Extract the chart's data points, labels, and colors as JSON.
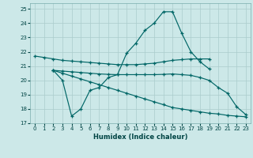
{
  "xlabel": "Humidex (Indice chaleur)",
  "background_color": "#cce8e8",
  "grid_color": "#aacccc",
  "line_color": "#006666",
  "xlim": [
    -0.5,
    23.5
  ],
  "ylim": [
    17,
    25.4
  ],
  "yticks": [
    17,
    18,
    19,
    20,
    21,
    22,
    23,
    24,
    25
  ],
  "xticks": [
    0,
    1,
    2,
    3,
    4,
    5,
    6,
    7,
    8,
    9,
    10,
    11,
    12,
    13,
    14,
    15,
    16,
    17,
    18,
    19,
    20,
    21,
    22,
    23
  ],
  "line1_x": [
    0,
    1,
    2,
    3,
    4,
    5,
    6,
    7,
    8,
    9,
    10,
    11,
    12,
    13,
    14,
    15,
    16,
    17,
    18,
    19
  ],
  "line1_y": [
    21.7,
    21.6,
    21.5,
    21.4,
    21.35,
    21.3,
    21.25,
    21.2,
    21.15,
    21.1,
    21.1,
    21.1,
    21.15,
    21.2,
    21.3,
    21.4,
    21.45,
    21.5,
    21.5,
    21.5
  ],
  "line2_x": [
    2,
    3,
    4,
    5,
    6,
    7,
    8,
    9,
    10,
    11,
    12,
    13,
    14,
    15,
    16,
    17,
    18,
    19
  ],
  "line2_y": [
    20.7,
    20.0,
    17.5,
    18.0,
    19.3,
    19.5,
    20.2,
    20.4,
    21.9,
    22.6,
    23.5,
    24.0,
    24.8,
    24.8,
    23.3,
    22.0,
    21.3,
    20.8
  ],
  "line3_x": [
    2,
    3,
    4,
    5,
    6,
    7,
    8,
    9,
    10,
    11,
    12,
    13,
    14,
    15,
    16,
    17,
    18,
    19,
    20,
    21,
    22,
    23
  ],
  "line3_y": [
    20.7,
    20.5,
    20.3,
    20.1,
    19.9,
    19.7,
    19.5,
    19.3,
    19.1,
    18.9,
    18.7,
    18.5,
    18.3,
    18.1,
    18.0,
    17.9,
    17.8,
    17.7,
    17.65,
    17.55,
    17.5,
    17.45
  ],
  "line4_x": [
    2,
    3,
    4,
    5,
    6,
    7,
    8,
    9,
    10,
    11,
    12,
    13,
    14,
    15,
    16,
    17,
    18,
    19,
    20,
    21,
    22,
    23
  ],
  "line4_y": [
    20.7,
    20.65,
    20.6,
    20.55,
    20.5,
    20.45,
    20.42,
    20.4,
    20.4,
    20.4,
    20.4,
    20.4,
    20.42,
    20.45,
    20.4,
    20.35,
    20.2,
    20.0,
    19.5,
    19.1,
    18.15,
    17.6
  ]
}
